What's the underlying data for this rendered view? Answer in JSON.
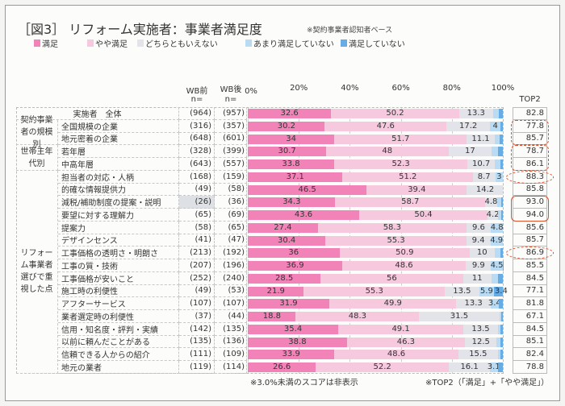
{
  "chart_data": {
    "type": "bar",
    "orientation": "horizontal-stacked-100",
    "title": "［図3］ リフォーム実施者：事業者満足度",
    "subtitle": "※契約事業者認知者ベース",
    "legend": [
      "満足",
      "やや満足",
      "どちらともいえない",
      "あまり満足していない",
      "満足していない"
    ],
    "colors": [
      "#f283b8",
      "#f6c9de",
      "#e3e3ea",
      "#b9dcf4",
      "#66ade6"
    ],
    "x_ticks": [
      "0%",
      "20%",
      "40%",
      "60%",
      "80%",
      "100%"
    ],
    "xlim": [
      0,
      100
    ],
    "col_headers": {
      "before": "WB前",
      "after": "WB後",
      "n": "n=",
      "top2": "TOP2"
    },
    "groups": [
      {
        "label": "",
        "rows": [
          0
        ]
      },
      {
        "label": "契約事業者の規模別",
        "rows": [
          1,
          2
        ]
      },
      {
        "label": "世帯主年代別",
        "rows": [
          3,
          4
        ]
      },
      {
        "label": "リフォーム事業者選びで重視した点",
        "rows": [
          5,
          6,
          7,
          8,
          9,
          10,
          11,
          12,
          13,
          14,
          15,
          16,
          17,
          18,
          19,
          20
        ]
      }
    ],
    "rows": [
      {
        "label": "実施者　全体",
        "n_before": "(964)",
        "n_after": "(957)",
        "values": [
          32.6,
          50.2,
          13.3,
          2.4,
          1.5
        ],
        "top2": "82.8"
      },
      {
        "label": "全国規模の企業",
        "n_before": "(316)",
        "n_after": "(357)",
        "values": [
          30.2,
          47.6,
          17.2,
          4.0,
          1.0
        ],
        "top2": "77.8"
      },
      {
        "label": "地元密着の企業",
        "n_before": "(648)",
        "n_after": "(601)",
        "values": [
          34.0,
          51.7,
          11.1,
          2.0,
          1.2
        ],
        "top2": "85.7"
      },
      {
        "label": "若年層",
        "n_before": "(328)",
        "n_after": "(399)",
        "values": [
          30.7,
          48.0,
          17.0,
          2.5,
          1.8
        ],
        "top2": "78.7"
      },
      {
        "label": "中高年層",
        "n_before": "(643)",
        "n_after": "(557)",
        "values": [
          33.8,
          52.3,
          10.7,
          2.2,
          1.0
        ],
        "top2": "86.1"
      },
      {
        "label": "担当者の対応・人柄",
        "n_before": "(168)",
        "n_after": "(159)",
        "values": [
          37.1,
          51.2,
          8.7,
          3.0,
          0
        ],
        "top2": "88.3"
      },
      {
        "label": "的確な情報提供力",
        "n_before": "(49)",
        "n_after": "(58)",
        "values": [
          46.5,
          39.4,
          14.2,
          0,
          0
        ],
        "top2": "85.8"
      },
      {
        "label": "減税/補助制度の提案・説明",
        "n_before": "(26)",
        "n_after": "(36)",
        "values": [
          34.3,
          58.7,
          4.8,
          1.5,
          0.7
        ],
        "top2": "93.0"
      },
      {
        "label": "要望に対する理解力",
        "n_before": "(65)",
        "n_after": "(69)",
        "values": [
          43.6,
          50.4,
          4.2,
          1.2,
          0.6
        ],
        "top2": "94.0"
      },
      {
        "label": "提案力",
        "n_before": "(58)",
        "n_after": "(65)",
        "values": [
          27.4,
          58.3,
          9.6,
          4.8,
          0
        ],
        "top2": "85.6"
      },
      {
        "label": "デザインセンス",
        "n_before": "(41)",
        "n_after": "(47)",
        "values": [
          30.4,
          55.3,
          9.4,
          4.9,
          0
        ],
        "top2": "85.7"
      },
      {
        "label": "工事価格の透明さ・明朗さ",
        "n_before": "(213)",
        "n_after": "(192)",
        "values": [
          36.0,
          50.9,
          10.0,
          2.0,
          1.1
        ],
        "top2": "86.9"
      },
      {
        "label": "工事の質・技術",
        "n_before": "(207)",
        "n_after": "(196)",
        "values": [
          36.9,
          48.6,
          9.9,
          4.5,
          0.1
        ],
        "top2": "85.5"
      },
      {
        "label": "工事価格が安いこと",
        "n_before": "(252)",
        "n_after": "(240)",
        "values": [
          28.5,
          56.0,
          11.0,
          2.5,
          2.0
        ],
        "top2": "84.5"
      },
      {
        "label": "施工時の利便性",
        "n_before": "(49)",
        "n_after": "(53)",
        "values": [
          21.9,
          55.3,
          13.5,
          5.9,
          3.4
        ],
        "top2": "77.1"
      },
      {
        "label": "アフターサービス",
        "n_before": "(107)",
        "n_after": "(107)",
        "values": [
          31.9,
          49.9,
          13.3,
          3.4,
          1.5
        ],
        "top2": "81.8"
      },
      {
        "label": "業者選定時の利便性",
        "n_before": "(37)",
        "n_after": "(44)",
        "values": [
          18.8,
          48.3,
          31.5,
          0.7,
          0.7
        ],
        "top2": "67.1"
      },
      {
        "label": "信用・知名度・評判・実績",
        "n_before": "(142)",
        "n_after": "(135)",
        "values": [
          35.4,
          49.1,
          13.5,
          1.2,
          0.8
        ],
        "top2": "84.5"
      },
      {
        "label": "以前に頼んだことがある",
        "n_before": "(135)",
        "n_after": "(136)",
        "values": [
          38.8,
          46.3,
          12.5,
          1.4,
          1.0
        ],
        "top2": "85.1"
      },
      {
        "label": "信頼できる人からの紹介",
        "n_before": "(111)",
        "n_after": "(109)",
        "values": [
          33.9,
          48.6,
          15.5,
          1.2,
          0.8
        ],
        "top2": "82.4"
      },
      {
        "label": "地元の業者",
        "n_before": "(119)",
        "n_after": "(114)",
        "values": [
          26.6,
          52.2,
          16.1,
          3.1,
          2.0
        ],
        "top2": "78.8"
      }
    ],
    "highlights": [
      {
        "rows": [
          1,
          2
        ],
        "style": "dashed"
      },
      {
        "rows": [
          3,
          4
        ],
        "style": "dashed"
      },
      {
        "rows": [
          5
        ],
        "style": "dashed-ellipse"
      },
      {
        "rows": [
          7,
          8
        ],
        "style": "solid"
      },
      {
        "rows": [
          11
        ],
        "style": "dashed-ellipse"
      }
    ],
    "label_threshold": 3.0,
    "footnotes": {
      "left": "※3.0%未満のスコアは非表示",
      "right": "※TOP2（「満足」+「やや満足」）"
    }
  }
}
